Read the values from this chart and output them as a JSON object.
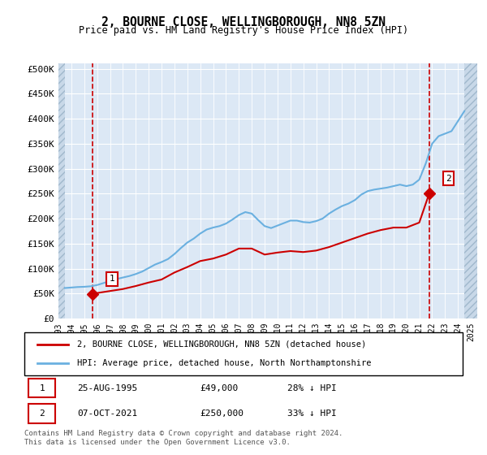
{
  "title": "2, BOURNE CLOSE, WELLINGBOROUGH, NN8 5ZN",
  "subtitle": "Price paid vs. HM Land Registry's House Price Index (HPI)",
  "ylabel_ticks": [
    "£0",
    "£50K",
    "£100K",
    "£150K",
    "£200K",
    "£250K",
    "£300K",
    "£350K",
    "£400K",
    "£450K",
    "£500K"
  ],
  "ytick_values": [
    0,
    50000,
    100000,
    150000,
    200000,
    250000,
    300000,
    350000,
    400000,
    450000,
    500000
  ],
  "ylim": [
    0,
    510000
  ],
  "xlim_min": 1993.0,
  "xlim_max": 2025.5,
  "xticks": [
    1993,
    1994,
    1995,
    1996,
    1997,
    1998,
    1999,
    2000,
    2001,
    2002,
    2003,
    2004,
    2005,
    2006,
    2007,
    2008,
    2009,
    2010,
    2011,
    2012,
    2013,
    2014,
    2015,
    2016,
    2017,
    2018,
    2019,
    2020,
    2021,
    2022,
    2023,
    2024,
    2025
  ],
  "hpi_color": "#6ab0e0",
  "price_color": "#cc0000",
  "bg_plot": "#dce8f5",
  "bg_hatch": "#c8d8e8",
  "hatch_pattern": "////",
  "grid_color": "#ffffff",
  "point1_x": 1995.646,
  "point1_y": 49000,
  "point2_x": 2021.769,
  "point2_y": 250000,
  "point1_label": "1",
  "point2_label": "2",
  "legend_line1": "2, BOURNE CLOSE, WELLINGBOROUGH, NN8 5ZN (detached house)",
  "legend_line2": "HPI: Average price, detached house, North Northamptonshire",
  "table_row1": [
    "1",
    "25-AUG-1995",
    "£49,000",
    "28% ↓ HPI"
  ],
  "table_row2": [
    "2",
    "07-OCT-2021",
    "£250,000",
    "33% ↓ HPI"
  ],
  "footnote": "Contains HM Land Registry data © Crown copyright and database right 2024.\nThis data is licensed under the Open Government Licence v3.0.",
  "hpi_x": [
    1993.5,
    1994.0,
    1994.5,
    1995.0,
    1995.5,
    1996.0,
    1996.5,
    1997.0,
    1997.5,
    1998.0,
    1998.5,
    1999.0,
    1999.5,
    2000.0,
    2000.5,
    2001.0,
    2001.5,
    2002.0,
    2002.5,
    2003.0,
    2003.5,
    2004.0,
    2004.5,
    2005.0,
    2005.5,
    2006.0,
    2006.5,
    2007.0,
    2007.5,
    2008.0,
    2008.5,
    2009.0,
    2009.5,
    2010.0,
    2010.5,
    2011.0,
    2011.5,
    2012.0,
    2012.5,
    2013.0,
    2013.5,
    2014.0,
    2014.5,
    2015.0,
    2015.5,
    2016.0,
    2016.5,
    2017.0,
    2017.5,
    2018.0,
    2018.5,
    2019.0,
    2019.5,
    2020.0,
    2020.5,
    2021.0,
    2021.5,
    2022.0,
    2022.5,
    2023.0,
    2023.5,
    2024.0,
    2024.5
  ],
  "hpi_y": [
    61000,
    62000,
    63000,
    63500,
    64500,
    67000,
    71000,
    75000,
    79000,
    82000,
    85000,
    89000,
    94000,
    101000,
    108000,
    113000,
    119000,
    129000,
    141000,
    152000,
    160000,
    170000,
    178000,
    182000,
    185000,
    190000,
    198000,
    207000,
    213000,
    210000,
    197000,
    185000,
    181000,
    186000,
    191000,
    196000,
    196000,
    193000,
    192000,
    195000,
    200000,
    210000,
    218000,
    225000,
    230000,
    237000,
    248000,
    255000,
    258000,
    260000,
    262000,
    265000,
    268000,
    265000,
    268000,
    278000,
    310000,
    350000,
    365000,
    370000,
    375000,
    395000,
    415000
  ],
  "price_x": [
    1995.646,
    1996.0,
    1997.0,
    1998.0,
    1999.0,
    2000.0,
    2001.0,
    2002.0,
    2003.0,
    2004.0,
    2005.0,
    2006.0,
    2007.0,
    2008.0,
    2009.0,
    2010.0,
    2011.0,
    2012.0,
    2013.0,
    2014.0,
    2015.0,
    2016.0,
    2017.0,
    2018.0,
    2019.0,
    2020.0,
    2021.0,
    2021.769
  ],
  "price_y": [
    49000,
    51000,
    55000,
    59000,
    65000,
    72000,
    78000,
    92000,
    103000,
    115000,
    120000,
    128000,
    140000,
    140000,
    128000,
    132000,
    135000,
    133000,
    136000,
    143000,
    152000,
    161000,
    170000,
    177000,
    182000,
    182000,
    192000,
    250000
  ]
}
